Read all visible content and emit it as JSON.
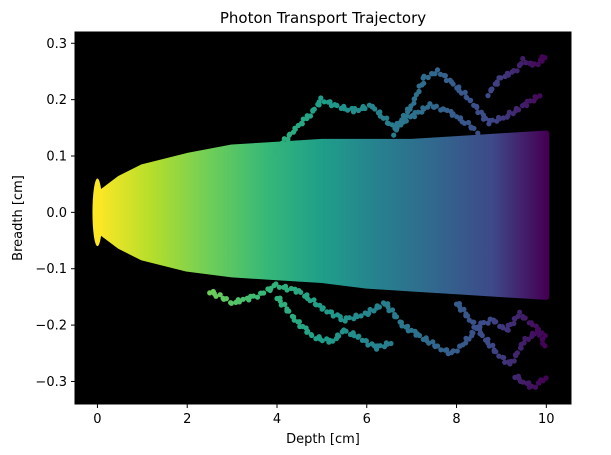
{
  "chart_data": {
    "type": "scatter",
    "title": "Photon Transport Trajectory",
    "xlabel": "Depth [cm]",
    "ylabel": "Breadth [cm]",
    "xlim": [
      -0.5,
      10.55
    ],
    "ylim": [
      -0.34,
      0.32
    ],
    "x_ticks": [
      0,
      2,
      4,
      6,
      8,
      10
    ],
    "x_tick_labels": [
      "0",
      "2",
      "4",
      "6",
      "8",
      "10"
    ],
    "y_ticks": [
      -0.3,
      -0.2,
      -0.1,
      0.0,
      0.1,
      0.2,
      0.3
    ],
    "y_tick_labels": [
      "−0.3",
      "−0.2",
      "−0.1",
      "0.0",
      "0.1",
      "0.2",
      "0.3"
    ],
    "grid": false,
    "background_color": "#000000",
    "colormap": "viridis_r",
    "color_encodes": "depth",
    "envelope": {
      "x": [
        0,
        0.5,
        1,
        2,
        3,
        4,
        5,
        6,
        7,
        8,
        9,
        10
      ],
      "upper": [
        0.03,
        0.06,
        0.08,
        0.1,
        0.115,
        0.12,
        0.125,
        0.125,
        0.125,
        0.13,
        0.135,
        0.14
      ],
      "lower": [
        -0.03,
        -0.06,
        -0.08,
        -0.1,
        -0.11,
        -0.115,
        -0.12,
        -0.13,
        -0.135,
        -0.14,
        -0.145,
        -0.15
      ]
    },
    "trajectories": [
      {
        "x": [
          3.9,
          4.3,
          4.7,
          5.0,
          5.3,
          5.7,
          6.1,
          6.6,
          7.0,
          7.4,
          7.8,
          8.2,
          8.5
        ],
        "y": [
          0.1,
          0.14,
          0.17,
          0.2,
          0.19,
          0.18,
          0.19,
          0.15,
          0.17,
          0.19,
          0.18,
          0.16,
          0.14
        ]
      },
      {
        "x": [
          6.6,
          7.0,
          7.3,
          7.6,
          7.9,
          8.3,
          8.7,
          9.1,
          9.5,
          9.9
        ],
        "y": [
          0.14,
          0.19,
          0.24,
          0.25,
          0.23,
          0.2,
          0.16,
          0.17,
          0.19,
          0.21
        ]
      },
      {
        "x": [
          8.7,
          9.0,
          9.3,
          9.5,
          9.7,
          9.9,
          10.0
        ],
        "y": [
          0.21,
          0.24,
          0.25,
          0.27,
          0.26,
          0.27,
          0.28
        ]
      },
      {
        "x": [
          4.0,
          4.4,
          4.8,
          5.2,
          5.5,
          5.8,
          6.2,
          6.6
        ],
        "y": [
          -0.15,
          -0.19,
          -0.22,
          -0.23,
          -0.21,
          -0.22,
          -0.24,
          -0.23
        ]
      },
      {
        "x": [
          2.5,
          3.0,
          3.5,
          4.0,
          4.5,
          5.0,
          5.5,
          6.0,
          6.4
        ],
        "y": [
          -0.14,
          -0.16,
          -0.15,
          -0.13,
          -0.14,
          -0.17,
          -0.19,
          -0.18,
          -0.16
        ]
      },
      {
        "x": [
          6.4,
          6.8,
          7.2,
          7.6,
          7.9,
          8.2,
          8.5,
          8.8,
          9.1,
          9.4,
          9.7,
          10.0
        ],
        "y": [
          -0.16,
          -0.2,
          -0.22,
          -0.24,
          -0.25,
          -0.23,
          -0.2,
          -0.19,
          -0.21,
          -0.18,
          -0.2,
          -0.22
        ]
      },
      {
        "x": [
          8.0,
          8.3,
          8.6,
          8.9,
          9.2,
          9.5,
          9.8,
          10.0
        ],
        "y": [
          -0.16,
          -0.19,
          -0.22,
          -0.25,
          -0.27,
          -0.23,
          -0.21,
          -0.24
        ]
      },
      {
        "x": [
          9.3,
          9.5,
          9.7,
          9.9,
          10.0
        ],
        "y": [
          -0.29,
          -0.3,
          -0.31,
          -0.3,
          -0.29
        ]
      }
    ]
  }
}
